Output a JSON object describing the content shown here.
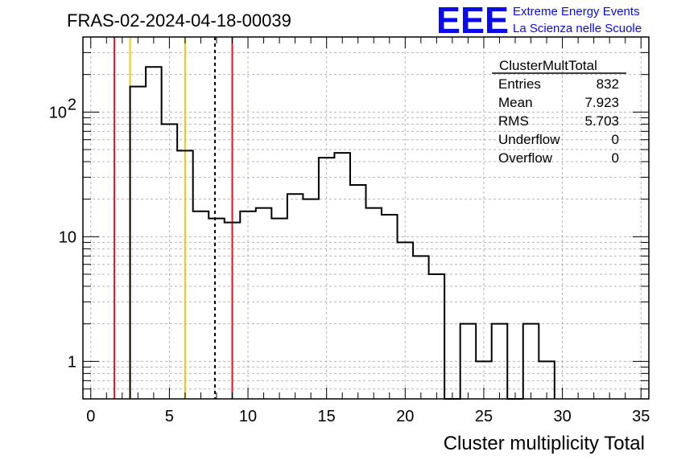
{
  "header": {
    "run_title": "FRAS-02-2024-04-18-00039",
    "logo_text": "EEE",
    "logo_line1": "Extreme Energy Events",
    "logo_line2": "La Scienza nelle Scuole"
  },
  "stats_box": {
    "title": "ClusterMultTotal",
    "rows": [
      {
        "label": "Entries",
        "value": "832"
      },
      {
        "label": "Mean",
        "value": "7.923"
      },
      {
        "label": "RMS",
        "value": "5.703"
      },
      {
        "label": "Underflow",
        "value": "0"
      },
      {
        "label": "Overflow",
        "value": "0"
      }
    ]
  },
  "chart_data": {
    "type": "histogram",
    "xlabel": "Cluster multiplicity Total",
    "ylabel": "",
    "xlim": [
      -0.5,
      35.5
    ],
    "ylim": [
      0.5,
      400
    ],
    "yscale": "log",
    "grid": true,
    "line_color": "#000000",
    "bin_edges": [
      2.5,
      3.5,
      4.5,
      5.5,
      6.5,
      7.5,
      8.5,
      9.5,
      10.5,
      11.5,
      12.5,
      13.5,
      14.5,
      15.5,
      16.5,
      17.5,
      18.5,
      19.5,
      20.5,
      21.5,
      22.5,
      23.5,
      24.5,
      25.5,
      26.5,
      27.5,
      28.5,
      29.5
    ],
    "values": [
      160,
      230,
      80,
      49,
      16,
      14,
      13,
      16,
      17,
      14,
      22,
      20,
      43,
      47,
      26,
      17,
      15,
      9,
      7,
      5,
      0,
      2,
      1,
      2,
      0,
      2,
      1
    ],
    "x_ticks": [
      0,
      5,
      10,
      15,
      20,
      25,
      30,
      35
    ],
    "y_ticks": [
      {
        "value": 1,
        "label": "1"
      },
      {
        "value": 10,
        "label": "10"
      },
      {
        "value": 100,
        "label": "10",
        "exponent": "2"
      }
    ],
    "vertical_lines": [
      {
        "x": 1.5,
        "color": "#e8141e",
        "style": "solid"
      },
      {
        "x": 2.5,
        "color": "#f2c80f",
        "style": "solid"
      },
      {
        "x": 6.0,
        "color": "#f2c80f",
        "style": "solid"
      },
      {
        "x": 7.9,
        "color": "#000000",
        "style": "dashed"
      },
      {
        "x": 9.0,
        "color": "#e8141e",
        "style": "solid"
      }
    ]
  }
}
